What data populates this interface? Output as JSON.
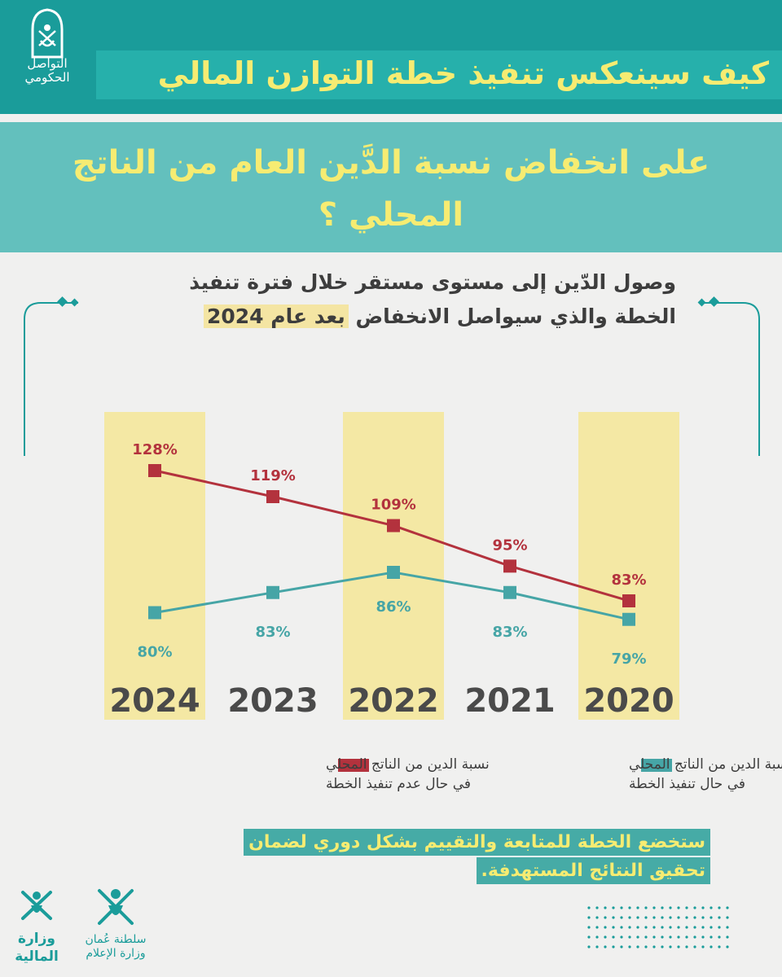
{
  "header": {
    "title": "كيف سينعكس تنفيذ خطة التوازن المالي",
    "subtitle": "على انخفاض نسبة الدَّين العام من الناتج المحلي ؟"
  },
  "logo": {
    "line1": "التواصل",
    "line2": "الحكومي"
  },
  "intro": {
    "line1": "وصول الدّين إلى مستوى مستقر خلال فترة تنفيذ",
    "line2_main": "الخطة والذي سيواصل الانخفاض ",
    "line2_highlight": "بعد عام 2024"
  },
  "chart_data": {
    "type": "line",
    "x": [
      "2024",
      "2023",
      "2022",
      "2021",
      "2020"
    ],
    "series": [
      {
        "name": "نسبة الدين من الناتج المحلي في حال عدم تنفيذ الخطة",
        "values": [
          128,
          119,
          109,
          95,
          83
        ],
        "labels": [
          "128%",
          "119%",
          "109%",
          "95%",
          "83%"
        ],
        "color": "#b3323d"
      },
      {
        "name": "نسبة الدين من الناتج المحلي في حال تنفيذ الخطة",
        "values": [
          80,
          83,
          86,
          83,
          79
        ],
        "labels": [
          "80%",
          "83%",
          "86%",
          "83%",
          "79%"
        ],
        "color": "#46a5a6"
      }
    ],
    "highlight_years": [
      "2024",
      "2022",
      "2020"
    ],
    "highlight_color": "#f4e8a4"
  },
  "legend": {
    "red_line1": "نسبة الدين من الناتج المحلي",
    "red_line2": "في حال عدم تنفيذ الخطة",
    "teal_line1": "نسبة الدين من الناتج المحلي",
    "teal_line2": "في حال تنفيذ الخطة"
  },
  "footer": {
    "line1": "ستخضع الخطة للمتابعة والتقييم بشكل دوري لضمان",
    "line2": "تحقيق النتائج المستهدفة."
  },
  "ministry_finance": {
    "line1": "وزارة",
    "line2": "المالية"
  },
  "ministry_info": {
    "line1": "سلطنة عُمان",
    "line2": "وزارة الإعلام"
  },
  "colors": {
    "teal_dark": "#1a9c9a",
    "teal_light": "#63c0bd",
    "yellow": "#f6ec72",
    "red": "#b3323d",
    "teal_series": "#46a5a6"
  }
}
